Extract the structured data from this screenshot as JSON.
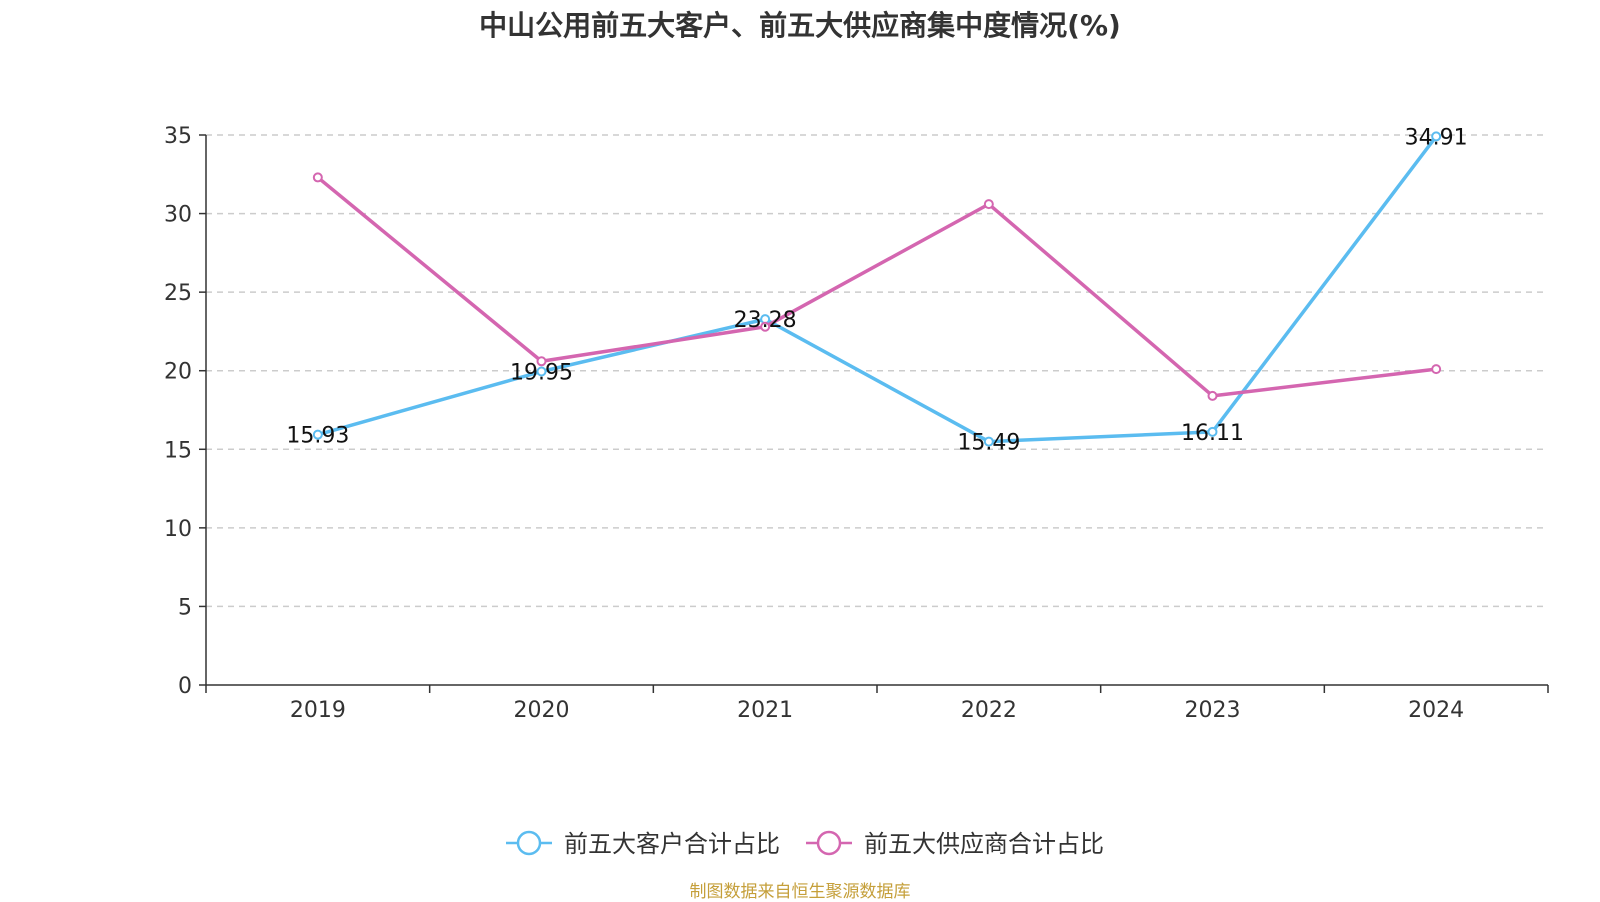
{
  "chart_data": {
    "type": "line",
    "title": "中山公用前五大客户、前五大供应商集中度情况(%)",
    "xlabel": "",
    "ylabel": "",
    "categories": [
      "2019",
      "2020",
      "2021",
      "2022",
      "2023",
      "2024"
    ],
    "ylim": [
      0,
      35
    ],
    "yticks": [
      0,
      5,
      10,
      15,
      20,
      25,
      30,
      35
    ],
    "grid": true,
    "legend_position": "bottom",
    "series": [
      {
        "name": "前五大客户合计占比",
        "color": "#5bbcf0",
        "values": [
          15.93,
          19.95,
          23.28,
          15.49,
          16.11,
          34.91
        ],
        "labels": [
          "15.93",
          "19.95",
          "23.28",
          "15.49",
          "16.11",
          "34.91"
        ]
      },
      {
        "name": "前五大供应商合计占比",
        "color": "#d466b0",
        "values": [
          32.3,
          20.6,
          22.8,
          30.6,
          18.4,
          20.1
        ]
      }
    ]
  },
  "source": "制图数据来自恒生聚源数据库"
}
